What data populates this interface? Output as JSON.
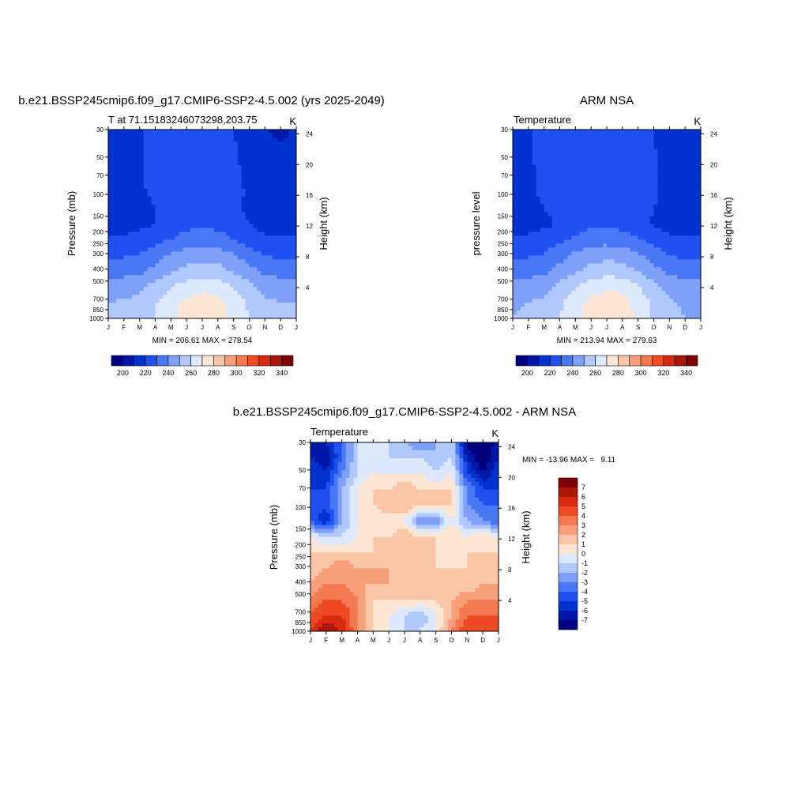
{
  "colors": {
    "temp_palette": [
      "#00007f",
      "#0018a8",
      "#0032d0",
      "#2050f0",
      "#4a78f5",
      "#7ea0f8",
      "#b0c8fc",
      "#dde9fd",
      "#fde6d4",
      "#fbc6a8",
      "#f8a07c",
      "#f47850",
      "#ee4a24",
      "#d82a10",
      "#aa1608",
      "#7f0000"
    ],
    "diff_palette": [
      "#00007f",
      "#0018a8",
      "#0032d0",
      "#2050f0",
      "#4a78f5",
      "#7ea0f8",
      "#b0c8fc",
      "#dde9fd",
      "#fde6d4",
      "#fbc6a8",
      "#f8a07c",
      "#f47850",
      "#ee4a24",
      "#d82a10",
      "#aa1608",
      "#7f0000"
    ]
  },
  "chart_data": [
    {
      "type": "heatmap",
      "title": "b.e21.BSSP245cmip6.f09_g17.CMIP6-SSP2-4.5.002 (yrs 2025-2049)",
      "subtitle_left": "T at 71.15183246073298,203.75",
      "subtitle_right": "K",
      "ylabel": "Pressure (mb)",
      "ylabel_right": "Height (km)",
      "x_ticks": [
        "J",
        "F",
        "M",
        "A",
        "M",
        "J",
        "J",
        "A",
        "S",
        "O",
        "N",
        "D",
        "J"
      ],
      "y_ticks": [
        "30",
        "50",
        "70",
        "100",
        "150",
        "200",
        "250",
        "300",
        "400",
        "500",
        "700",
        "850",
        "1000"
      ],
      "y_ticks_right": [
        "24",
        "20",
        "16",
        "12",
        "8",
        "4"
      ],
      "stats": "MIN = 206.61 MAX = 278.54",
      "colorbar_labels": [
        "200",
        "220",
        "240",
        "260",
        "280",
        "300",
        "320",
        "340"
      ],
      "min": 206.61,
      "max": 278.54,
      "levels_x": [
        "J",
        "F",
        "M",
        "A",
        "M",
        "J",
        "J",
        "A",
        "S",
        "O",
        "N",
        "D",
        "J"
      ],
      "levels_y": [
        30,
        50,
        70,
        100,
        150,
        200,
        250,
        300,
        400,
        500,
        700,
        850,
        1000
      ],
      "values": [
        [
          212,
          213,
          218,
          225,
          225,
          225,
          225,
          224,
          220,
          214,
          210,
          208,
          212
        ],
        [
          212,
          213,
          219,
          225,
          225,
          225,
          225,
          225,
          221,
          215,
          212,
          210,
          212
        ],
        [
          213,
          214,
          219,
          225,
          225,
          225,
          225,
          225,
          222,
          216,
          213,
          211,
          213
        ],
        [
          214,
          215,
          219,
          224,
          225,
          225,
          225,
          225,
          222,
          218,
          214,
          213,
          214
        ],
        [
          214,
          215,
          218,
          222,
          224,
          225,
          225,
          225,
          222,
          219,
          215,
          214,
          214
        ],
        [
          214,
          215,
          216,
          220,
          224,
          226,
          226,
          225,
          222,
          218,
          215,
          214,
          214
        ],
        [
          216,
          216,
          217,
          220,
          225,
          228,
          228,
          227,
          224,
          220,
          216,
          216,
          216
        ],
        [
          222,
          222,
          224,
          227,
          230,
          233,
          235,
          234,
          230,
          226,
          222,
          222,
          222
        ],
        [
          228,
          229,
          231,
          236,
          241,
          245,
          247,
          246,
          241,
          235,
          230,
          228,
          228
        ],
        [
          235,
          236,
          238,
          243,
          248,
          253,
          255,
          254,
          249,
          243,
          238,
          236,
          235
        ],
        [
          245,
          246,
          248,
          254,
          260,
          265,
          268,
          266,
          260,
          253,
          247,
          245,
          245
        ],
        [
          250,
          251,
          253,
          259,
          266,
          272,
          274,
          273,
          265,
          258,
          252,
          250,
          250
        ],
        [
          251,
          252,
          254,
          261,
          268,
          274,
          278,
          276,
          268,
          260,
          253,
          251,
          251
        ]
      ]
    },
    {
      "type": "heatmap",
      "title": "ARM NSA",
      "subtitle_left": "Temperature",
      "subtitle_right": "K",
      "ylabel": "pressure level",
      "ylabel_right": "Height (km)",
      "x_ticks": [
        "J",
        "F",
        "M",
        "A",
        "M",
        "J",
        "J",
        "A",
        "S",
        "O",
        "N",
        "D",
        "J"
      ],
      "y_ticks": [
        "30",
        "50",
        "70",
        "100",
        "150",
        "200",
        "250",
        "300",
        "400",
        "500",
        "700",
        "850",
        "1000"
      ],
      "y_ticks_right": [
        "24",
        "20",
        "16",
        "12",
        "8",
        "4"
      ],
      "stats": "MIN = 213.94 MAX = 279.63",
      "colorbar_labels": [
        "200",
        "220",
        "240",
        "260",
        "280",
        "300",
        "320",
        "340"
      ],
      "min": 213.94,
      "max": 279.63,
      "levels_x": [
        "J",
        "F",
        "M",
        "A",
        "M",
        "J",
        "J",
        "A",
        "S",
        "O",
        "N",
        "D",
        "J"
      ],
      "levels_y": [
        30,
        50,
        70,
        100,
        150,
        200,
        250,
        300,
        400,
        500,
        700,
        850,
        1000
      ],
      "values": [
        [
          218,
          219,
          222,
          225,
          226,
          226,
          228,
          226,
          224,
          220,
          218,
          217,
          218
        ],
        [
          218,
          219,
          222,
          225,
          226,
          226,
          226,
          225,
          224,
          220,
          218,
          217,
          218
        ],
        [
          218,
          219,
          222,
          225,
          226,
          226,
          226,
          225,
          224,
          221,
          218,
          217,
          218
        ],
        [
          218,
          219,
          221,
          224,
          225,
          226,
          226,
          225,
          224,
          221,
          218,
          217,
          218
        ],
        [
          218,
          219,
          221,
          224,
          225,
          226,
          226,
          225,
          224,
          221,
          218,
          217,
          218
        ],
        [
          218,
          218,
          220,
          223,
          225,
          226,
          226,
          225,
          223,
          220,
          218,
          217,
          218
        ],
        [
          216,
          216,
          218,
          221,
          225,
          228,
          228,
          227,
          223,
          219,
          216,
          216,
          216
        ],
        [
          221,
          222,
          224,
          228,
          232,
          235,
          236,
          234,
          231,
          227,
          222,
          221,
          221
        ],
        [
          228,
          229,
          231,
          237,
          242,
          246,
          247,
          246,
          242,
          235,
          230,
          228,
          228
        ],
        [
          235,
          236,
          238,
          243,
          249,
          254,
          256,
          255,
          250,
          243,
          238,
          236,
          235
        ],
        [
          244,
          245,
          247,
          253,
          260,
          266,
          268,
          267,
          261,
          253,
          246,
          244,
          244
        ],
        [
          249,
          250,
          252,
          258,
          266,
          273,
          275,
          274,
          266,
          258,
          251,
          249,
          249
        ],
        [
          250,
          251,
          253,
          260,
          268,
          275,
          279,
          277,
          268,
          259,
          252,
          250,
          250
        ]
      ]
    },
    {
      "type": "heatmap",
      "title": "b.e21.BSSP245cmip6.f09_g17.CMIP6-SSP2-4.5.002 - ARM NSA",
      "subtitle_left": "Temperature",
      "subtitle_right": "K",
      "ylabel": "Pressure (mb)",
      "ylabel_right": "Height (km)",
      "x_ticks": [
        "J",
        "F",
        "M",
        "A",
        "M",
        "J",
        "J",
        "A",
        "S",
        "O",
        "N",
        "D",
        "J"
      ],
      "y_ticks": [
        "30",
        "50",
        "70",
        "100",
        "150",
        "200",
        "250",
        "300",
        "400",
        "500",
        "700",
        "850",
        "1000"
      ],
      "y_ticks_right": [
        "24",
        "20",
        "16",
        "12",
        "8",
        "4"
      ],
      "stats": "MIN = -13.96 MAX =   9.11",
      "colorbar_labels": [
        "7",
        "6",
        "5",
        "4",
        "3",
        "2",
        "1",
        "0",
        "-1",
        "-2",
        "-3",
        "-4",
        "-5",
        "-6",
        "-7"
      ],
      "min": -13.96,
      "max": 9.11,
      "levels_x": [
        "J",
        "F",
        "M",
        "A",
        "M",
        "J",
        "J",
        "A",
        "S",
        "O",
        "N",
        "D",
        "J"
      ],
      "levels_y": [
        30,
        50,
        70,
        100,
        150,
        200,
        250,
        300,
        400,
        500,
        700,
        850,
        1000
      ],
      "values": [
        [
          -6,
          -6,
          -4,
          -1,
          -1,
          -1,
          -2,
          -3,
          -2,
          -1,
          -8,
          -9,
          -6
        ],
        [
          -6,
          -7,
          -4,
          -1,
          -1,
          -1,
          -1,
          -1,
          -2,
          -1,
          -6,
          -8,
          -6
        ],
        [
          -5,
          -6,
          -3,
          -1,
          0,
          0,
          0,
          0,
          -1,
          0,
          -5,
          -7,
          -5
        ],
        [
          -5,
          -5,
          -2,
          0,
          1,
          1,
          2,
          1,
          1,
          1,
          -3,
          -5,
          -5
        ],
        [
          -4,
          -5,
          -2,
          0,
          1,
          2,
          2,
          1,
          1,
          1,
          -3,
          -4,
          -4
        ],
        [
          -4,
          -6,
          -2,
          0,
          0,
          0,
          0,
          -3,
          -3,
          0,
          -2,
          -3,
          -4
        ],
        [
          0,
          -1,
          -1,
          0,
          1,
          1,
          2,
          1,
          1,
          1,
          0,
          1,
          0
        ],
        [
          1,
          1,
          1,
          1,
          1,
          1,
          1,
          2,
          1,
          0,
          1,
          1,
          1
        ],
        [
          1,
          2,
          3,
          2,
          2,
          2,
          2,
          2,
          1,
          1,
          1,
          1,
          1
        ],
        [
          2,
          3,
          3,
          2,
          2,
          2,
          1,
          2,
          1,
          1,
          1,
          2,
          2
        ],
        [
          3,
          4,
          4,
          3,
          1,
          1,
          1,
          1,
          1,
          2,
          3,
          3,
          3
        ],
        [
          4,
          5,
          5,
          3,
          1,
          0,
          -1,
          -2,
          0,
          2,
          4,
          4,
          4
        ],
        [
          5,
          7,
          6,
          3,
          1,
          0,
          -1,
          -1,
          0,
          3,
          5,
          5,
          5
        ]
      ]
    }
  ]
}
